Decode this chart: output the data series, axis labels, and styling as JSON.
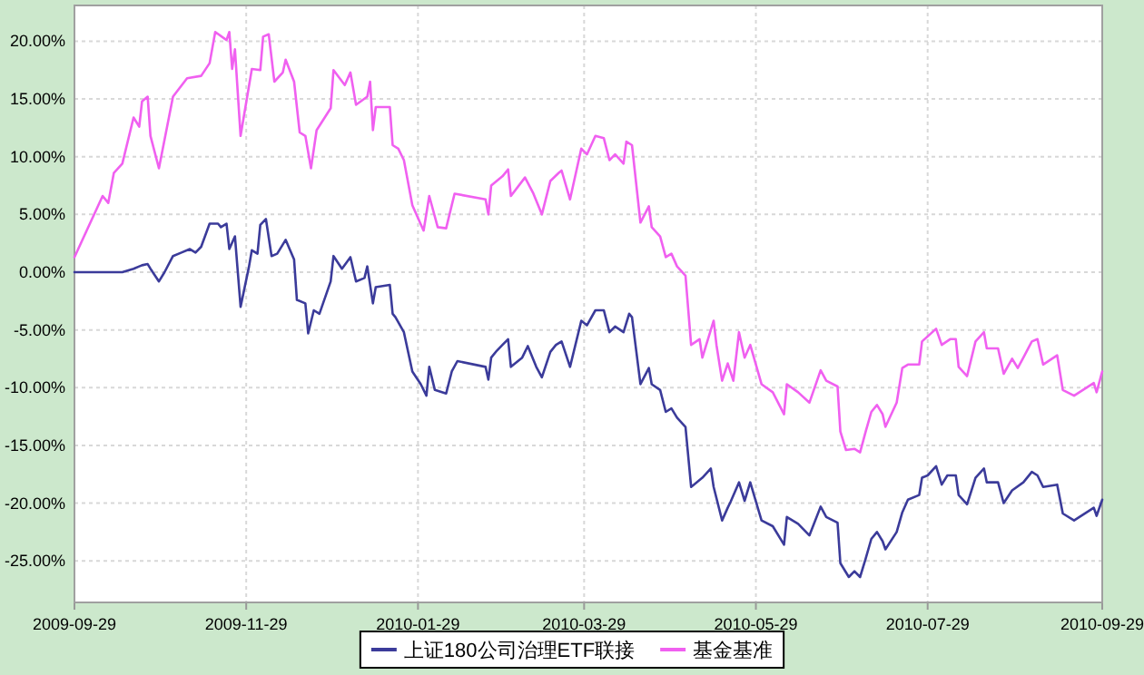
{
  "chart_data": {
    "type": "line",
    "xlim": [
      "2009-09-29",
      "2010-09-29"
    ],
    "xticks": [
      "2009-09-29",
      "2009-11-29",
      "2010-01-29",
      "2010-03-29",
      "2010-05-29",
      "2010-07-29",
      "2010-09-29"
    ],
    "ylim": [
      -28.6,
      23.1
    ],
    "yticks": [
      {
        "value": -25,
        "label": "-25.00%"
      },
      {
        "value": -20,
        "label": "-20.00%"
      },
      {
        "value": -15,
        "label": "-15.00%"
      },
      {
        "value": -10,
        "label": "-10.00%"
      },
      {
        "value": -5,
        "label": "-5.00%"
      },
      {
        "value": 0,
        "label": "0.00%"
      },
      {
        "value": 5,
        "label": "5.00%"
      },
      {
        "value": 10,
        "label": "10.00%"
      },
      {
        "value": 15,
        "label": "15.00%"
      },
      {
        "value": 20,
        "label": "20.00%"
      }
    ],
    "grid": true,
    "legend": "bottom",
    "line_style": "solid",
    "series": [
      {
        "name": "上证180公司治理ETF联接",
        "color": "#3b3b9a",
        "x": [
          "2009-09-29",
          "2009-10-16",
          "2009-10-20",
          "2009-10-22",
          "2009-10-23",
          "2009-10-25",
          "2009-10-26",
          "2009-10-29",
          "2009-10-31",
          "2009-11-03",
          "2009-11-06",
          "2009-11-09",
          "2009-11-11",
          "2009-11-13",
          "2009-11-16",
          "2009-11-19",
          "2009-11-20",
          "2009-11-22",
          "2009-11-23",
          "2009-11-25",
          "2009-11-27",
          "2009-11-30",
          "2009-12-01",
          "2009-12-03",
          "2009-12-04",
          "2009-12-06",
          "2009-12-08",
          "2009-12-10",
          "2009-12-13",
          "2009-12-16",
          "2009-12-17",
          "2009-12-20",
          "2009-12-21",
          "2009-12-23",
          "2009-12-25",
          "2009-12-29",
          "2009-12-30",
          "2010-01-02",
          "2010-01-05",
          "2010-01-07",
          "2010-01-10",
          "2010-01-11",
          "2010-01-13",
          "2010-01-14",
          "2010-01-19",
          "2010-01-20",
          "2010-01-21",
          "2010-01-24",
          "2010-01-27",
          "2010-01-30",
          "2010-02-01",
          "2010-02-02",
          "2010-02-04",
          "2010-02-08",
          "2010-02-10",
          "2010-02-12",
          "2010-02-22",
          "2010-02-23",
          "2010-02-24",
          "2010-02-26",
          "2010-02-28",
          "2010-03-02",
          "2010-03-03",
          "2010-03-07",
          "2010-03-09",
          "2010-03-12",
          "2010-03-14",
          "2010-03-17",
          "2010-03-19",
          "2010-03-21",
          "2010-03-24",
          "2010-03-28",
          "2010-03-30",
          "2010-04-02",
          "2010-04-05",
          "2010-04-07",
          "2010-04-09",
          "2010-04-12",
          "2010-04-14",
          "2010-04-15",
          "2010-04-18",
          "2010-04-21",
          "2010-04-22",
          "2010-04-25",
          "2010-04-27",
          "2010-04-29",
          "2010-05-01",
          "2010-05-04",
          "2010-05-06",
          "2010-05-10",
          "2010-05-13",
          "2010-05-14",
          "2010-05-17",
          "2010-05-19",
          "2010-05-20",
          "2010-05-23",
          "2010-05-25",
          "2010-05-27",
          "2010-05-31",
          "2010-06-04",
          "2010-06-08",
          "2010-06-09",
          "2010-06-13",
          "2010-06-17",
          "2010-06-21",
          "2010-06-23",
          "2010-06-27",
          "2010-06-28",
          "2010-07-01",
          "2010-07-03",
          "2010-07-05",
          "2010-07-07",
          "2010-07-09",
          "2010-07-11",
          "2010-07-13",
          "2010-07-14",
          "2010-07-18",
          "2010-07-20",
          "2010-07-22",
          "2010-07-26",
          "2010-07-27",
          "2010-07-29",
          "2010-08-01",
          "2010-08-03",
          "2010-08-05",
          "2010-08-08",
          "2010-08-09",
          "2010-08-12",
          "2010-08-15",
          "2010-08-18",
          "2010-08-19",
          "2010-08-23",
          "2010-08-25",
          "2010-08-28",
          "2010-09-01",
          "2010-09-04",
          "2010-09-06",
          "2010-09-08",
          "2010-09-13",
          "2010-09-15",
          "2010-09-19",
          "2010-09-26",
          "2010-09-27",
          "2010-09-29"
        ],
        "values": [
          0,
          0,
          0.3,
          0.5,
          0.6,
          0.7,
          0.3,
          -0.8,
          0,
          1.4,
          1.7,
          2.0,
          1.7,
          2.2,
          4.2,
          4.2,
          3.9,
          4.2,
          2.0,
          3.1,
          -3.0,
          0.5,
          1.9,
          1.6,
          4.1,
          4.6,
          1.4,
          1.6,
          2.8,
          1.1,
          -2.4,
          -2.7,
          -5.3,
          -3.3,
          -3.6,
          -0.8,
          1.4,
          0.3,
          1.3,
          -0.8,
          -0.5,
          0.5,
          -2.7,
          -1.3,
          -1.1,
          -3.6,
          -3.9,
          -5.2,
          -8.6,
          -9.7,
          -10.7,
          -8.2,
          -10.2,
          -10.5,
          -8.6,
          -7.7,
          -8.2,
          -9.3,
          -7.4,
          -6.8,
          -6.3,
          -5.8,
          -8.2,
          -7.4,
          -6.4,
          -8.2,
          -9.1,
          -6.9,
          -6.3,
          -6.0,
          -8.2,
          -4.2,
          -4.6,
          -3.3,
          -3.3,
          -5.2,
          -4.7,
          -5.2,
          -3.6,
          -3.9,
          -9.7,
          -8.3,
          -9.7,
          -10.2,
          -12.1,
          -11.8,
          -12.6,
          -13.4,
          -18.6,
          -17.8,
          -17.0,
          -18.6,
          -21.5,
          -20.4,
          -19.9,
          -18.2,
          -19.8,
          -18.2,
          -21.5,
          -22.0,
          -23.6,
          -21.2,
          -21.8,
          -22.8,
          -20.3,
          -21.2,
          -21.7,
          -25.2,
          -26.4,
          -25.9,
          -26.4,
          -24.8,
          -23.1,
          -22.5,
          -23.3,
          -24.0,
          -22.5,
          -20.8,
          -19.7,
          -19.3,
          -17.8,
          -17.6,
          -16.8,
          -18.4,
          -17.6,
          -17.6,
          -19.3,
          -20.1,
          -17.8,
          -17.0,
          -18.2,
          -18.2,
          -20.0,
          -18.9,
          -18.2,
          -17.3,
          -17.6,
          -18.6,
          -18.4,
          -20.9,
          -21.5,
          -20.4,
          -21.1,
          -19.7
        ]
      },
      {
        "name": "基金基准",
        "color": "#f060f0",
        "x": [
          "2009-09-29",
          "2009-10-09",
          "2009-10-11",
          "2009-10-13",
          "2009-10-16",
          "2009-10-20",
          "2009-10-22",
          "2009-10-23",
          "2009-10-25",
          "2009-10-26",
          "2009-10-29",
          "2009-11-03",
          "2009-11-08",
          "2009-11-13",
          "2009-11-16",
          "2009-11-18",
          "2009-11-22",
          "2009-11-23",
          "2009-11-24",
          "2009-11-25",
          "2009-11-27",
          "2009-12-01",
          "2009-12-04",
          "2009-12-05",
          "2009-12-07",
          "2009-12-09",
          "2009-12-12",
          "2009-12-13",
          "2009-12-16",
          "2009-12-18",
          "2009-12-20",
          "2009-12-22",
          "2009-12-24",
          "2009-12-29",
          "2009-12-30",
          "2010-01-03",
          "2010-01-05",
          "2010-01-07",
          "2010-01-11",
          "2010-01-12",
          "2010-01-13",
          "2010-01-14",
          "2010-01-19",
          "2010-01-20",
          "2010-01-22",
          "2010-01-24",
          "2010-01-27",
          "2010-01-31",
          "2010-02-02",
          "2010-02-05",
          "2010-02-08",
          "2010-02-10",
          "2010-02-11",
          "2010-02-22",
          "2010-02-23",
          "2010-02-24",
          "2010-02-28",
          "2010-03-02",
          "2010-03-03",
          "2010-03-08",
          "2010-03-11",
          "2010-03-14",
          "2010-03-17",
          "2010-03-20",
          "2010-03-21",
          "2010-03-24",
          "2010-03-28",
          "2010-03-30",
          "2010-04-02",
          "2010-04-05",
          "2010-04-07",
          "2010-04-09",
          "2010-04-12",
          "2010-04-13",
          "2010-04-15",
          "2010-04-18",
          "2010-04-21",
          "2010-04-22",
          "2010-04-25",
          "2010-04-27",
          "2010-04-29",
          "2010-05-01",
          "2010-05-04",
          "2010-05-06",
          "2010-05-09",
          "2010-05-10",
          "2010-05-14",
          "2010-05-15",
          "2010-05-17",
          "2010-05-19",
          "2010-05-21",
          "2010-05-23",
          "2010-05-25",
          "2010-05-27",
          "2010-05-31",
          "2010-06-04",
          "2010-06-08",
          "2010-06-09",
          "2010-06-13",
          "2010-06-17",
          "2010-06-21",
          "2010-06-23",
          "2010-06-27",
          "2010-06-28",
          "2010-06-30",
          "2010-07-03",
          "2010-07-05",
          "2010-07-07",
          "2010-07-09",
          "2010-07-11",
          "2010-07-13",
          "2010-07-14",
          "2010-07-18",
          "2010-07-20",
          "2010-07-22",
          "2010-07-26",
          "2010-07-27",
          "2010-08-01",
          "2010-08-03",
          "2010-08-06",
          "2010-08-08",
          "2010-08-09",
          "2010-08-12",
          "2010-08-15",
          "2010-08-18",
          "2010-08-19",
          "2010-08-23",
          "2010-08-25",
          "2010-08-28",
          "2010-08-30",
          "2010-09-01",
          "2010-09-04",
          "2010-09-06",
          "2010-09-08",
          "2010-09-13",
          "2010-09-15",
          "2010-09-19",
          "2010-09-26",
          "2010-09-27",
          "2010-09-29"
        ],
        "values": [
          1.3,
          6.6,
          6.0,
          8.6,
          9.4,
          13.4,
          12.6,
          14.8,
          15.2,
          11.8,
          9.0,
          15.2,
          16.8,
          17.0,
          18.1,
          20.8,
          20.1,
          20.8,
          17.6,
          19.3,
          11.8,
          17.6,
          17.5,
          20.4,
          20.6,
          16.5,
          17.3,
          18.4,
          16.5,
          12.1,
          11.8,
          9.0,
          12.3,
          14.2,
          17.5,
          16.2,
          17.3,
          14.5,
          15.2,
          16.5,
          12.3,
          14.3,
          14.3,
          11.0,
          10.7,
          9.7,
          5.8,
          3.6,
          6.6,
          3.9,
          3.8,
          5.8,
          6.8,
          6.3,
          5.0,
          7.5,
          8.3,
          8.9,
          6.6,
          8.2,
          6.8,
          5.0,
          7.9,
          8.6,
          8.8,
          6.3,
          10.7,
          10.2,
          11.8,
          11.6,
          9.7,
          10.2,
          9.4,
          11.3,
          11.0,
          4.3,
          5.7,
          3.9,
          3.1,
          1.3,
          1.6,
          0.5,
          -0.3,
          -6.3,
          -5.8,
          -7.4,
          -4.2,
          -6.3,
          -9.4,
          -7.9,
          -9.4,
          -5.2,
          -7.4,
          -6.3,
          -9.7,
          -10.4,
          -12.3,
          -9.7,
          -10.4,
          -11.3,
          -8.5,
          -9.4,
          -9.9,
          -13.8,
          -15.4,
          -15.3,
          -15.6,
          -13.8,
          -12.1,
          -11.5,
          -12.3,
          -13.4,
          -11.3,
          -8.3,
          -8.0,
          -8.0,
          -6.0,
          -4.9,
          -6.3,
          -5.8,
          -5.8,
          -8.2,
          -9.0,
          -6.0,
          -5.2,
          -6.6,
          -6.6,
          -8.8,
          -7.5,
          -8.3,
          -7.4,
          -6.0,
          -5.8,
          -8.0,
          -7.2,
          -10.2,
          -10.7,
          -9.6,
          -10.4,
          -8.6
        ]
      }
    ]
  }
}
